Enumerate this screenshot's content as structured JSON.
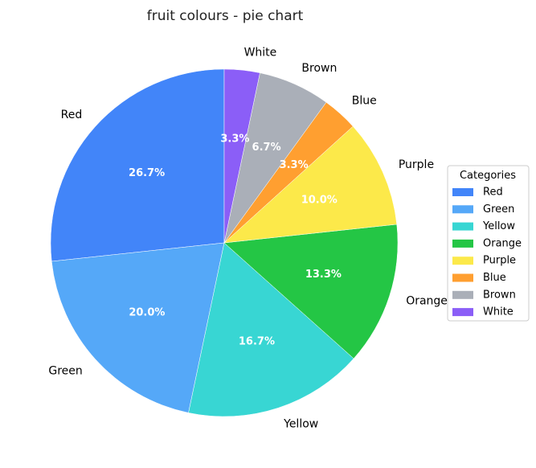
{
  "chart_data": {
    "type": "pie",
    "title": "fruit colours - pie chart",
    "categories": [
      "Red",
      "Green",
      "Yellow",
      "Orange",
      "Purple",
      "Blue",
      "Brown",
      "White"
    ],
    "values": [
      26.7,
      20.0,
      16.7,
      13.3,
      10.0,
      3.3,
      6.7,
      3.3
    ],
    "value_labels": [
      "26.7%",
      "20.0%",
      "16.7%",
      "13.3%",
      "10.0%",
      "3.3%",
      "6.7%",
      "3.3%"
    ],
    "colors": [
      "#4285F9",
      "#55A8F8",
      "#38D6D3",
      "#24C645",
      "#FCE94A",
      "#FF9F30",
      "#AAAFB8",
      "#8B5EF7"
    ],
    "start_angle_deg": 90,
    "direction": "counterclockwise",
    "legend": {
      "title": "Categories",
      "placement": "right"
    }
  }
}
